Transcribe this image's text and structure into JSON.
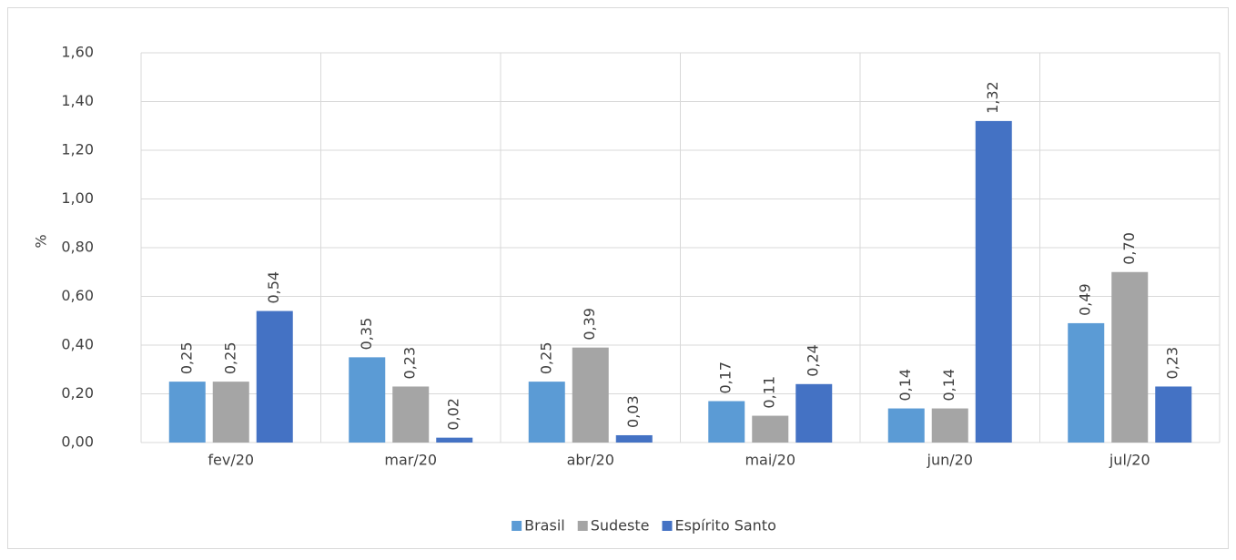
{
  "chart_data": {
    "type": "bar",
    "y_label": "%",
    "categories": [
      "fev/20",
      "mar/20",
      "abr/20",
      "mai/20",
      "jun/20",
      "jul/20"
    ],
    "series": [
      {
        "name": "Brasil",
        "color": "#5b9bd5",
        "values": [
          0.25,
          0.35,
          0.25,
          0.17,
          0.14,
          0.49
        ],
        "value_labels": [
          "0,25",
          "0,35",
          "0,25",
          "0,17",
          "0,14",
          "0,49"
        ]
      },
      {
        "name": "Sudeste",
        "color": "#a5a5a5",
        "values": [
          0.25,
          0.23,
          0.39,
          0.11,
          0.14,
          0.7
        ],
        "value_labels": [
          "0,25",
          "0,23",
          "0,39",
          "0,11",
          "0,14",
          "0,70"
        ]
      },
      {
        "name": "Espírito Santo",
        "color": "#4472c4",
        "values": [
          0.54,
          0.02,
          0.03,
          0.24,
          1.32,
          0.23
        ],
        "value_labels": [
          "0,54",
          "0,02",
          "0,03",
          "0,24",
          "1,32",
          "0,23"
        ]
      }
    ],
    "ylim": [
      0,
      1.6
    ],
    "yticks": [
      {
        "value": 0,
        "label": "0,00"
      },
      {
        "value": 0.2,
        "label": "0,20"
      },
      {
        "value": 0.4,
        "label": "0,40"
      },
      {
        "value": 0.6,
        "label": "0,60"
      },
      {
        "value": 0.8,
        "label": "0,80"
      },
      {
        "value": 1.0,
        "label": "1,00"
      },
      {
        "value": 1.2,
        "label": "1,20"
      },
      {
        "value": 1.4,
        "label": "1,40"
      },
      {
        "value": 1.6,
        "label": "1,60"
      }
    ],
    "grid": true,
    "legend": "bottom"
  }
}
